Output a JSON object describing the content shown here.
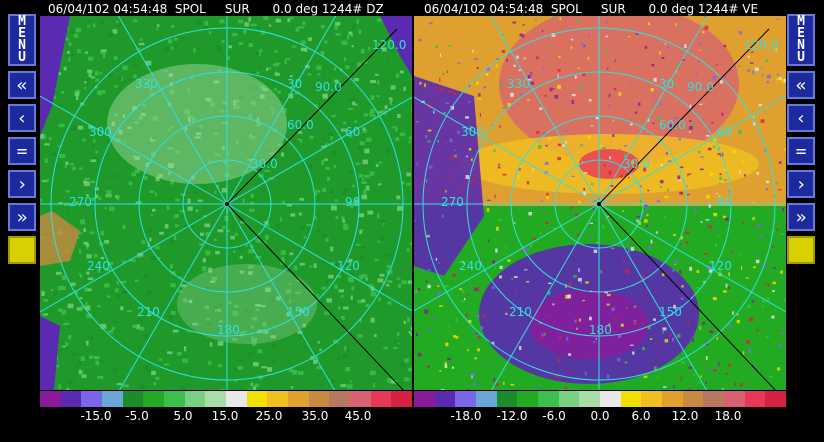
{
  "left_panel": {
    "status": "06/04/102 04:54:48  SPOL     SUR      0.0 deg 1244# DZ",
    "range_labels": [
      "120.0",
      "90.0",
      "60.0",
      "30.0"
    ],
    "azimuth_labels": [
      "330",
      "300",
      "270",
      "240",
      "210",
      "180",
      "150",
      "120",
      "90",
      "60",
      "30"
    ],
    "scale_colors": [
      "#8a1a9c",
      "#5a2ab0",
      "#7a66e8",
      "#6aa6d8",
      "#1a8c2a",
      "#22aa22",
      "#3cc04c",
      "#78d080",
      "#a8dca8",
      "#e8e8e8",
      "#f0e000",
      "#f0c020",
      "#e0a030",
      "#c88a40",
      "#b87860",
      "#d86070",
      "#e83858",
      "#d82040"
    ],
    "tick_labels": [
      "-15.0",
      "-5.0",
      "5.0",
      "15.0",
      "25.0",
      "35.0",
      "45.0"
    ]
  },
  "right_panel": {
    "status": "06/04/102 04:54:48  SPOL     SUR      0.0 deg 1244# VE",
    "range_labels": [
      "120.0",
      "90.0",
      "60.0",
      "30.0"
    ],
    "azimuth_labels": [
      "330",
      "300",
      "270",
      "240",
      "210",
      "180",
      "150",
      "120",
      "90",
      "60",
      "30"
    ],
    "scale_colors": [
      "#8a1a9c",
      "#5a2ab0",
      "#7a66e8",
      "#6aa6d8",
      "#1a8c2a",
      "#22aa22",
      "#3cc04c",
      "#78d080",
      "#a8dca8",
      "#e8e8e8",
      "#f0e000",
      "#f0c020",
      "#e0a030",
      "#c88a40",
      "#b87860",
      "#d86070",
      "#e83858",
      "#d82040"
    ],
    "tick_labels": [
      "-18.0",
      "-12.0",
      "-6.0",
      "0.0",
      "6.0",
      "12.0",
      "18.0"
    ]
  },
  "side_buttons": {
    "menu": [
      "M",
      "E",
      "N",
      "U"
    ],
    "first": "«",
    "prev": "‹",
    "equal": "=",
    "next": "›",
    "last": "»"
  },
  "colors": {
    "ring": "#30e0e0",
    "button_fill": "#1c2a9e",
    "button_border": "#6b78d8",
    "toggle": "#d8d000"
  }
}
